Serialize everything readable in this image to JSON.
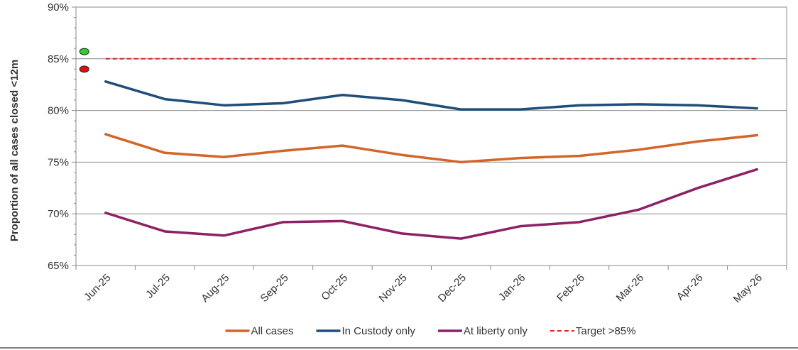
{
  "chart_data": {
    "type": "line",
    "title": "",
    "xlabel": "",
    "ylabel": "Proportion of all cases closed <12m",
    "categories": [
      "Jun-25",
      "Jul-25",
      "Aug-25",
      "Sep-25",
      "Oct-25",
      "Nov-25",
      "Dec-25",
      "Jan-26",
      "Feb-26",
      "Mar-26",
      "Apr-26",
      "May-26"
    ],
    "ylim": [
      65,
      90
    ],
    "yticks": [
      65,
      70,
      75,
      80,
      85,
      90
    ],
    "ytick_labels": [
      "65%",
      "70%",
      "75%",
      "80%",
      "85%",
      "90%"
    ],
    "grid": true,
    "legend_position": "bottom",
    "series": [
      {
        "name": "All cases",
        "color": "#d4652a",
        "dashed": false,
        "values": [
          77.7,
          75.9,
          75.5,
          76.1,
          76.6,
          75.7,
          75.0,
          75.4,
          75.6,
          76.2,
          77.0,
          77.6
        ]
      },
      {
        "name": "In Custody only",
        "color": "#1f4e79",
        "dashed": false,
        "values": [
          82.8,
          81.1,
          80.5,
          80.7,
          81.5,
          81.0,
          80.1,
          80.1,
          80.5,
          80.6,
          80.5,
          80.2
        ]
      },
      {
        "name": "At liberty only",
        "color": "#8e2166",
        "dashed": false,
        "values": [
          70.1,
          68.3,
          67.9,
          69.2,
          69.3,
          68.1,
          67.6,
          68.8,
          69.2,
          70.4,
          72.5,
          74.3
        ]
      },
      {
        "name": "Target >85%",
        "color": "#e3211c",
        "dashed": true,
        "values": [
          85,
          85,
          85,
          85,
          85,
          85,
          85,
          85,
          85,
          85,
          85,
          85
        ]
      }
    ],
    "markers": [
      {
        "label": "above-target",
        "color": "#33cc33",
        "value": 85.7
      },
      {
        "label": "below-target",
        "color": "#dd1111",
        "value": 84.0
      }
    ]
  }
}
